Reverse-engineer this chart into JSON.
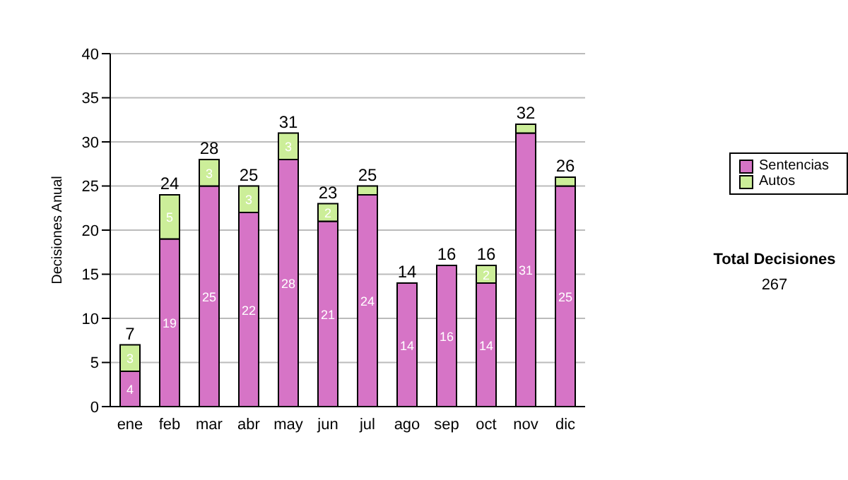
{
  "chart_data": {
    "type": "bar",
    "stacked": true,
    "ylabel": "Decisiones Anual",
    "categories": [
      "ene",
      "feb",
      "mar",
      "abr",
      "may",
      "jun",
      "jul",
      "ago",
      "sep",
      "oct",
      "nov",
      "dic"
    ],
    "series": [
      {
        "name": "Sentencias",
        "color": "#d674c6",
        "values": [
          4,
          19,
          25,
          22,
          28,
          21,
          24,
          14,
          16,
          14,
          31,
          25
        ],
        "value_labels": [
          "4",
          "19",
          "25",
          "22",
          "28",
          "21",
          "24",
          "14",
          "16",
          "14",
          "31",
          "25"
        ]
      },
      {
        "name": "Autos",
        "color": "#ccee99",
        "values": [
          3,
          5,
          3,
          3,
          3,
          2,
          1,
          0,
          0,
          2,
          1,
          1
        ],
        "value_labels": [
          "3",
          "5",
          "3",
          "3",
          "3",
          "2",
          null,
          null,
          null,
          "2",
          null,
          null
        ]
      }
    ],
    "totals": [
      "7",
      "24",
      "28",
      "25",
      "31",
      "23",
      "25",
      "14",
      "16",
      "16",
      "32",
      "26"
    ],
    "ylim": [
      0,
      40
    ],
    "yticks": [
      0,
      5,
      10,
      15,
      20,
      25,
      30,
      35,
      40
    ],
    "grid": "y",
    "legend": "right",
    "annotations": [
      "Total Decisiones",
      "267"
    ]
  }
}
